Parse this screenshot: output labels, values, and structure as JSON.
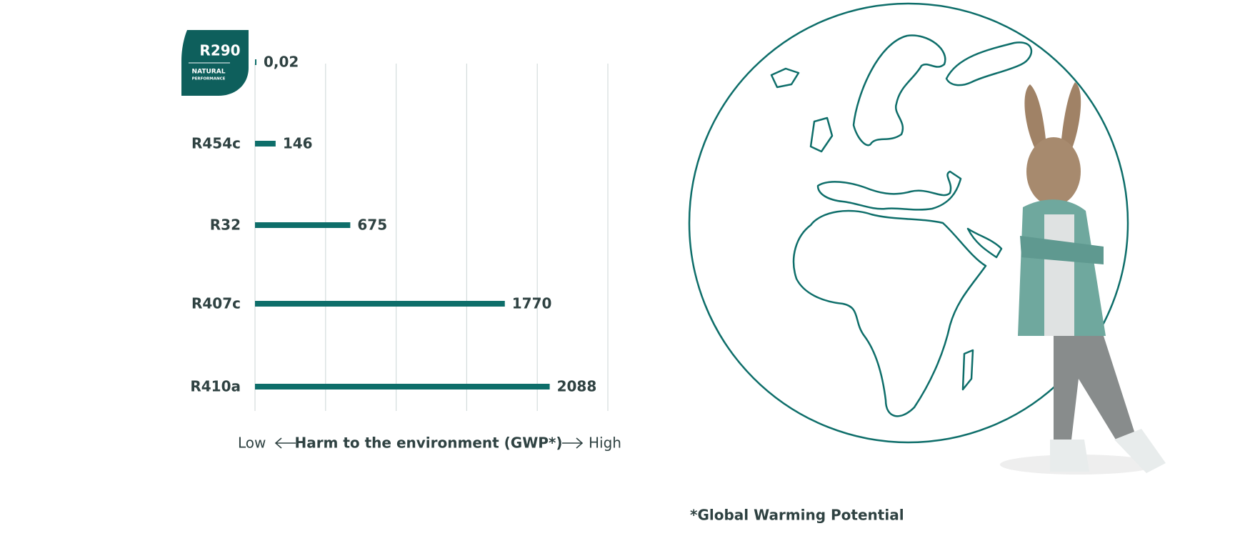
{
  "chart_data": {
    "type": "hbar",
    "categories": [
      "R290",
      "R454c",
      "R32",
      "R407c",
      "R410a"
    ],
    "values": [
      0.02,
      146,
      675,
      1770,
      2088
    ],
    "value_labels": [
      "0,02",
      "146",
      "675",
      "1770",
      "2088"
    ],
    "color": "#0e6e6a",
    "xlim": [
      0,
      2500
    ],
    "xticks": [
      0,
      500,
      1000,
      1500,
      2000,
      2500
    ],
    "grid": true,
    "badge": {
      "line1": "NATURAL",
      "line2": "PERFORMANCE"
    },
    "axis_label": {
      "low": "Low",
      "title": "Harm to the environment (GWP*)",
      "high": "High"
    },
    "footnote": "*Global Warming Potential"
  }
}
